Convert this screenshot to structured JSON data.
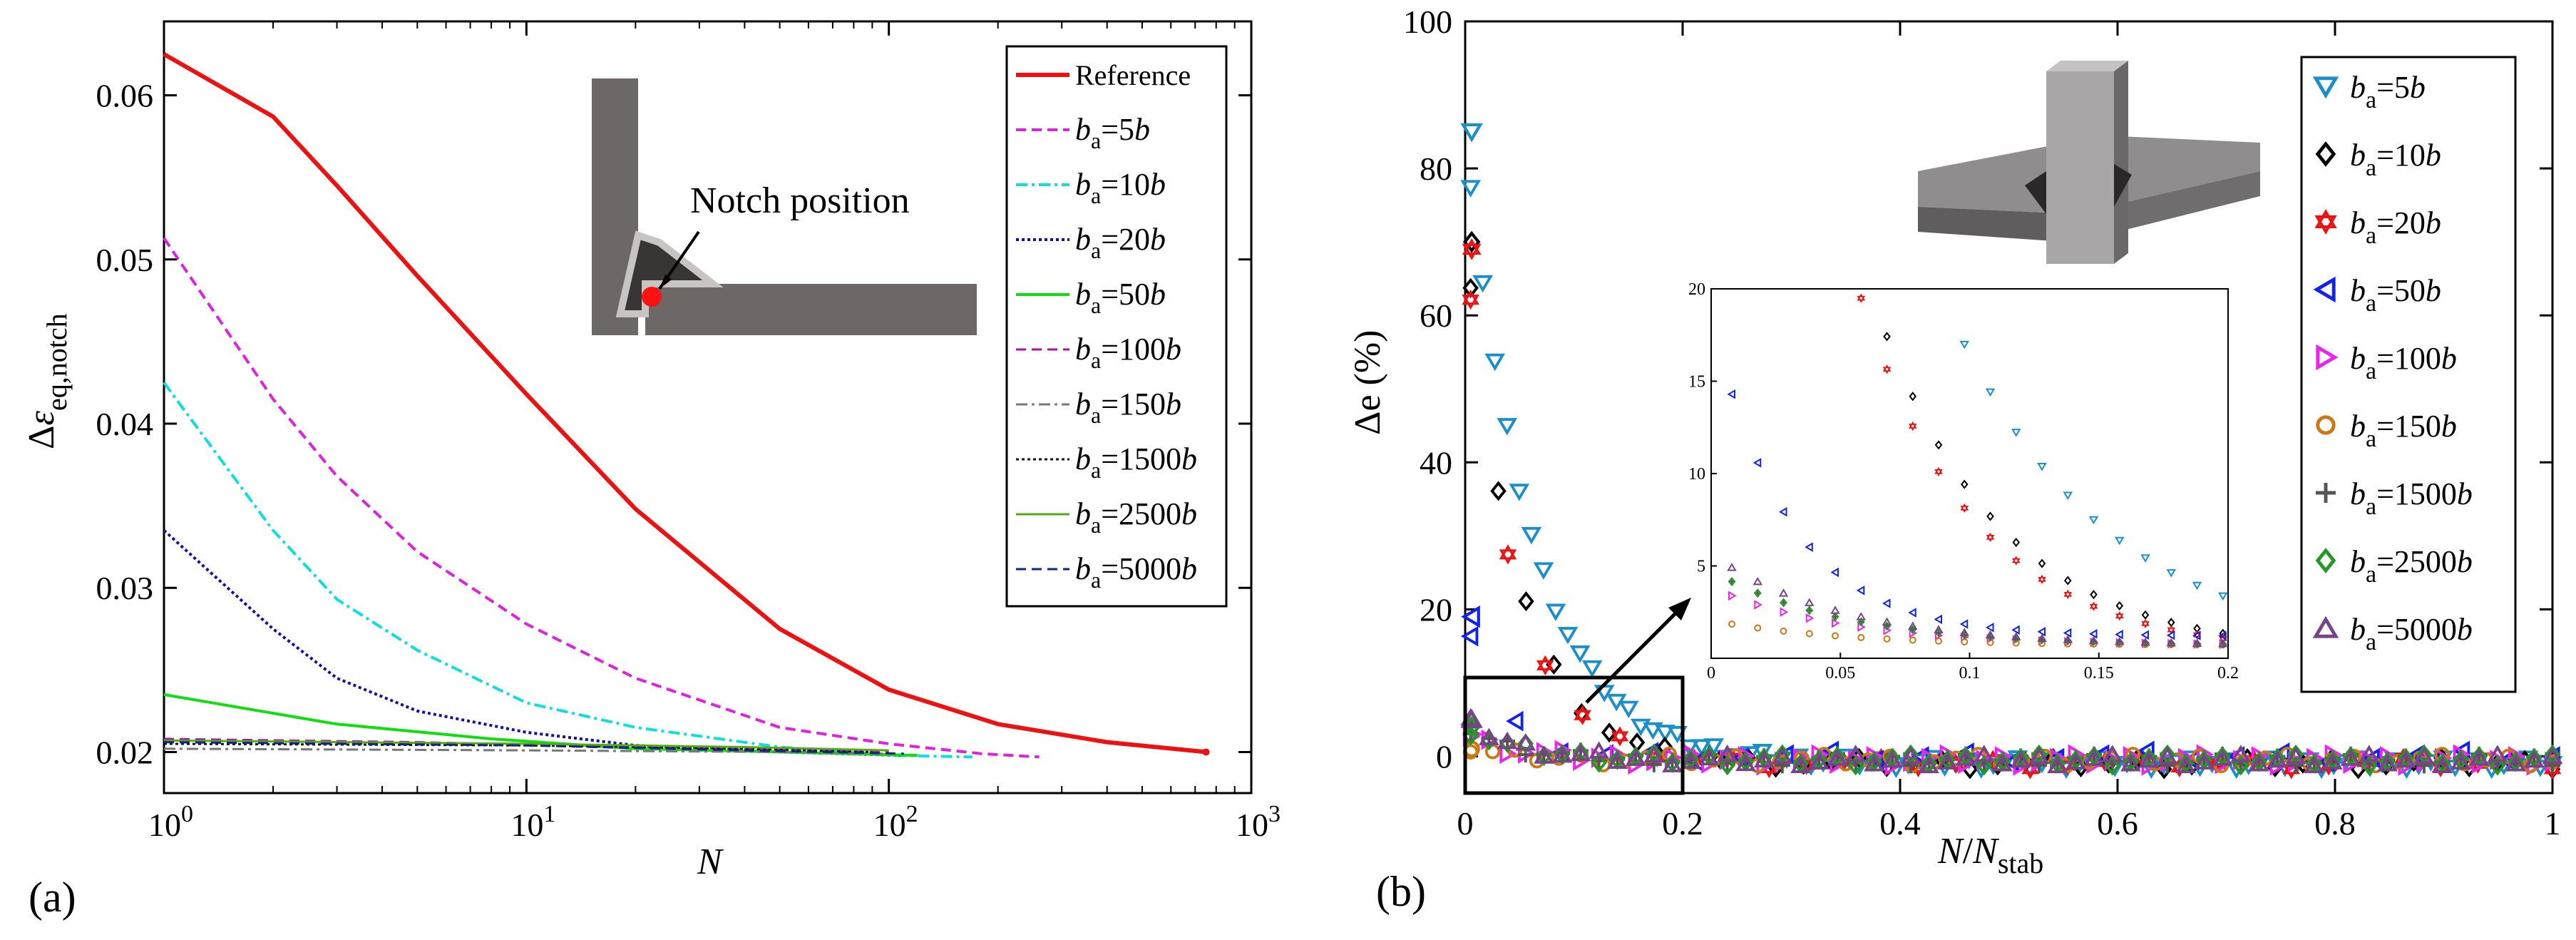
{
  "panel_a": {
    "label": "(a)",
    "notch_text": "Notch position"
  },
  "panel_b": {
    "label": "(b)"
  },
  "chart_data": [
    {
      "type": "line",
      "xscale": "log",
      "xlim": [
        1,
        1000
      ],
      "ylim": [
        0.0175,
        0.0645
      ],
      "xticks": [
        "10^0",
        "10^1",
        "10^2",
        "10^3"
      ],
      "yticks": [
        "0.02",
        "0.03",
        "0.04",
        "0.05",
        "0.06"
      ],
      "xlabel": "N",
      "ylabel": "Δε_eq,notch",
      "series": [
        {
          "name": "Reference",
          "legend": "Reference",
          "color": "#ee1111",
          "dash": "",
          "width": 6,
          "points": [
            [
              1,
              0.0625
            ],
            [
              2,
              0.0587
            ],
            [
              3,
              0.0545
            ],
            [
              5,
              0.049
            ],
            [
              10,
              0.0418
            ],
            [
              20,
              0.0348
            ],
            [
              50,
              0.0275
            ],
            [
              100,
              0.0238
            ],
            [
              200,
              0.0217
            ],
            [
              400,
              0.0206
            ],
            [
              750,
              0.02
            ]
          ]
        },
        {
          "name": "ba=5b",
          "sub": "a",
          "eq": "=5",
          "color": "#dd22dd",
          "dash": "14,8",
          "width": 4,
          "points": [
            [
              1,
              0.0513
            ],
            [
              2,
              0.0415
            ],
            [
              3,
              0.0368
            ],
            [
              5,
              0.0322
            ],
            [
              10,
              0.0278
            ],
            [
              20,
              0.0245
            ],
            [
              50,
              0.0215
            ],
            [
              100,
              0.0205
            ],
            [
              180,
              0.0199
            ],
            [
              260,
              0.0197
            ]
          ]
        },
        {
          "name": "ba=10b",
          "sub": "a",
          "eq": "=10",
          "color": "#11dddd",
          "dash": "16,6,4,6",
          "width": 4,
          "points": [
            [
              1,
              0.0425
            ],
            [
              2,
              0.0335
            ],
            [
              3,
              0.0293
            ],
            [
              5,
              0.0262
            ],
            [
              10,
              0.023
            ],
            [
              20,
              0.0215
            ],
            [
              50,
              0.0203
            ],
            [
              100,
              0.0198
            ],
            [
              170,
              0.0197
            ]
          ]
        },
        {
          "name": "ba=20b",
          "sub": "a",
          "eq": "=20",
          "color": "#1111aa",
          "dash": "4,4",
          "width": 4,
          "points": [
            [
              1,
              0.0335
            ],
            [
              2,
              0.0275
            ],
            [
              3,
              0.0245
            ],
            [
              5,
              0.0225
            ],
            [
              10,
              0.0212
            ],
            [
              20,
              0.0204
            ],
            [
              50,
              0.02
            ],
            [
              110,
              0.0198
            ]
          ]
        },
        {
          "name": "ba=50b",
          "sub": "a",
          "eq": "=50",
          "color": "#11dd11",
          "dash": "",
          "width": 4,
          "points": [
            [
              1,
              0.0235
            ],
            [
              3,
              0.0217
            ],
            [
              8,
              0.0208
            ],
            [
              20,
              0.0202
            ],
            [
              50,
              0.02
            ],
            [
              120,
              0.0198
            ]
          ]
        },
        {
          "name": "ba=100b",
          "sub": "a",
          "eq": "=100",
          "color": "#aa11aa",
          "dash": "14,8",
          "width": 3,
          "points": [
            [
              1,
              0.0208
            ],
            [
              5,
              0.0206
            ],
            [
              20,
              0.0203
            ],
            [
              60,
              0.0201
            ],
            [
              100,
              0.02
            ]
          ]
        },
        {
          "name": "ba=150b",
          "sub": "a",
          "eq": "=150",
          "color": "#777777",
          "dash": "16,6,4,6",
          "width": 3,
          "points": [
            [
              1,
              0.0202
            ],
            [
              10,
              0.0201
            ],
            [
              50,
              0.02
            ],
            [
              100,
              0.0199
            ]
          ]
        },
        {
          "name": "ba=1500b",
          "sub": "a",
          "eq": "=1500",
          "color": "#111111",
          "dash": "4,4",
          "width": 3,
          "points": [
            [
              1,
              0.0205
            ],
            [
              10,
              0.0204
            ],
            [
              40,
              0.0202
            ],
            [
              90,
              0.02
            ]
          ]
        },
        {
          "name": "ba=2500b",
          "sub": "a",
          "eq": "=2500",
          "color": "#55aa11",
          "dash": "",
          "width": 3,
          "points": [
            [
              1,
              0.0207
            ],
            [
              10,
              0.0205
            ],
            [
              40,
              0.0203
            ],
            [
              100,
              0.0201
            ]
          ]
        },
        {
          "name": "ba=5000b",
          "sub": "a",
          "eq": "=5000",
          "color": "#112288",
          "dash": "14,8",
          "width": 3,
          "points": [
            [
              1,
              0.0206
            ],
            [
              10,
              0.0204
            ],
            [
              40,
              0.0201
            ],
            [
              110,
              0.0199
            ]
          ]
        }
      ]
    },
    {
      "type": "scatter",
      "xlim": [
        0,
        1
      ],
      "ylim": [
        -5,
        100
      ],
      "xticks": [
        "0",
        "0.2",
        "0.4",
        "0.6",
        "0.8",
        "1"
      ],
      "yticks": [
        "0",
        "20",
        "40",
        "60",
        "80",
        "100"
      ],
      "xlabel": "N/N_stab",
      "ylabel": "Δe (%)",
      "series": [
        {
          "name": "ba=5b",
          "eq": "=5",
          "marker": "tri-down",
          "color": "#1a8fcc",
          "start": 85,
          "tau": 0.06,
          "floor": -1,
          "n": 90
        },
        {
          "name": "ba=10b",
          "eq": "=10",
          "marker": "diamond",
          "color": "#000000",
          "start": 70,
          "tau": 0.048,
          "floor": -1,
          "n": 40
        },
        {
          "name": "ba=20b",
          "eq": "=20",
          "marker": "star",
          "color": "#ee1111",
          "start": 69,
          "tau": 0.045,
          "floor": -1,
          "n": 30
        },
        {
          "name": "ba=50b",
          "eq": "=50",
          "marker": "tri-left",
          "color": "#1122ee",
          "start": 19,
          "tau": 0.03,
          "floor": 0,
          "n": 25
        },
        {
          "name": "ba=100b",
          "eq": "=100",
          "marker": "tri-right",
          "color": "#ee22ee",
          "start": 3,
          "tau": 0.05,
          "floor": -0.5,
          "n": 60
        },
        {
          "name": "ba=150b",
          "eq": "=150",
          "marker": "circle",
          "color": "#cc7711",
          "start": 1,
          "tau": 0.05,
          "floor": -0.5,
          "n": 50
        },
        {
          "name": "ba=1500b",
          "eq": "=1500",
          "marker": "plus",
          "color": "#555555",
          "start": 4,
          "tau": 0.05,
          "floor": -0.5,
          "n": 60
        },
        {
          "name": "ba=2500b",
          "eq": "=2500",
          "marker": "diamond",
          "color": "#229922",
          "start": 4,
          "tau": 0.05,
          "floor": -0.5,
          "n": 60
        },
        {
          "name": "ba=5000b",
          "eq": "=5000",
          "marker": "tri-up",
          "color": "#774488",
          "start": 5,
          "tau": 0.05,
          "floor": -0.5,
          "n": 60
        }
      ],
      "inset": {
        "xlim": [
          0,
          0.2
        ],
        "ylim": [
          0,
          20
        ],
        "xticks": [
          "0",
          "0.05",
          "0.1",
          "0.15",
          "0.2"
        ],
        "yticks": [
          "5",
          "10",
          "15",
          "20"
        ]
      }
    }
  ]
}
